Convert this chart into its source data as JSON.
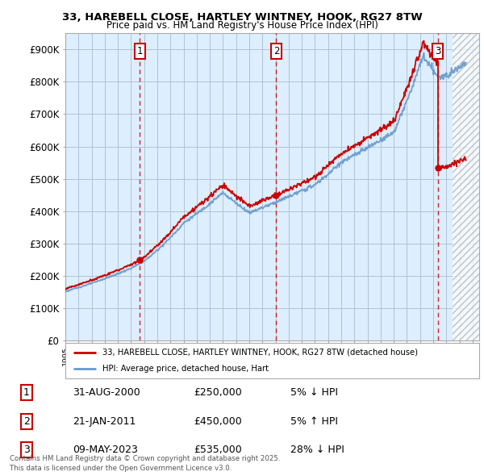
{
  "title": "33, HAREBELL CLOSE, HARTLEY WINTNEY, HOOK, RG27 8TW",
  "subtitle": "Price paid vs. HM Land Registry's House Price Index (HPI)",
  "y_ticks": [
    0,
    100000,
    200000,
    300000,
    400000,
    500000,
    600000,
    700000,
    800000,
    900000
  ],
  "y_tick_labels": [
    "£0",
    "£100K",
    "£200K",
    "£300K",
    "£400K",
    "£500K",
    "£600K",
    "£700K",
    "£800K",
    "£900K"
  ],
  "x_start_year": 1995,
  "x_end_year": 2026,
  "transaction_prices": [
    250000,
    450000,
    535000
  ],
  "transaction_labels": [
    "1",
    "2",
    "3"
  ],
  "transaction_info": [
    {
      "label": "1",
      "date": "31-AUG-2000",
      "price": "£250,000",
      "pct": "5% ↓ HPI"
    },
    {
      "label": "2",
      "date": "21-JAN-2011",
      "price": "£450,000",
      "pct": "5% ↑ HPI"
    },
    {
      "label": "3",
      "date": "09-MAY-2023",
      "price": "£535,000",
      "pct": "28% ↓ HPI"
    }
  ],
  "legend_line1": "33, HAREBELL CLOSE, HARTLEY WINTNEY, HOOK, RG27 8TW (detached house)",
  "legend_line2": "HPI: Average price, detached house, Hart",
  "footer": "Contains HM Land Registry data © Crown copyright and database right 2025.\nThis data is licensed under the Open Government Licence v3.0.",
  "line_color_red": "#cc0000",
  "line_color_blue": "#6699cc",
  "vline_color": "#cc0000",
  "background_color": "#ddeeff",
  "plot_bg": "#ffffff",
  "grid_color": "#aabbcc"
}
